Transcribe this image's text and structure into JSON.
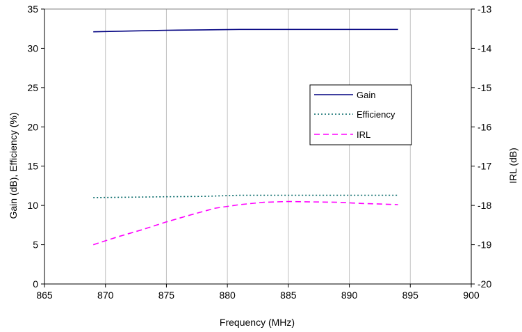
{
  "chart_data": {
    "type": "line",
    "title": "",
    "xlabel": "Frequency (MHz)",
    "ylabel_left": "Gain (dB), Efficiency (%)",
    "ylabel_right": "IRL (dB)",
    "xlim": [
      865,
      900
    ],
    "ylim_left": [
      0,
      35
    ],
    "ylim_right": [
      -20,
      -13
    ],
    "x_ticks": [
      865,
      870,
      875,
      880,
      885,
      890,
      895,
      900
    ],
    "y_left_ticks": [
      0,
      5,
      10,
      15,
      20,
      25,
      30,
      35
    ],
    "y_right_ticks": [
      -20,
      -19,
      -18,
      -17,
      -16,
      -15,
      -14,
      -13
    ],
    "grid": "vertical",
    "legend_position": "right",
    "series": [
      {
        "name": "Gain",
        "axis": "left",
        "style": "solid",
        "color": "#000080",
        "x": [
          869,
          872,
          875,
          878,
          881,
          884,
          887,
          890,
          894
        ],
        "y": [
          32.1,
          32.2,
          32.3,
          32.35,
          32.4,
          32.4,
          32.4,
          32.4,
          32.4
        ]
      },
      {
        "name": "Efficiency",
        "axis": "left",
        "style": "dotted",
        "color": "#006666",
        "x": [
          869,
          872,
          875,
          878,
          881,
          884,
          887,
          890,
          894
        ],
        "y": [
          11.0,
          11.05,
          11.1,
          11.15,
          11.3,
          11.3,
          11.3,
          11.3,
          11.3
        ]
      },
      {
        "name": "IRL",
        "axis": "right",
        "style": "dashed",
        "color": "#ff00ff",
        "x": [
          869,
          871,
          873,
          875,
          877,
          879,
          881,
          883,
          885,
          887,
          889,
          891,
          893,
          894
        ],
        "y": [
          -19.0,
          -18.8,
          -18.62,
          -18.42,
          -18.24,
          -18.07,
          -17.98,
          -17.92,
          -17.9,
          -17.91,
          -17.92,
          -17.95,
          -17.97,
          -17.98
        ]
      }
    ]
  }
}
